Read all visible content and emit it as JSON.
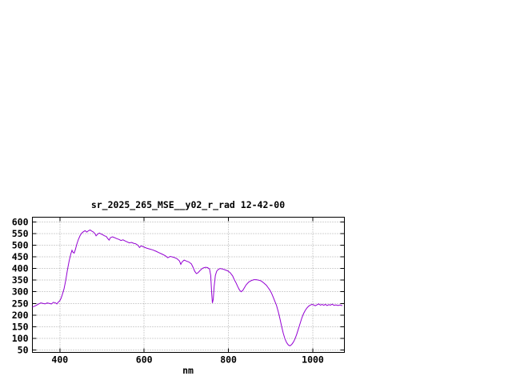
{
  "window": {
    "background": "#ffffff"
  },
  "chart_data": {
    "type": "line",
    "title": "sr_2025_265_MSE__y02_r_rad 12-42-00",
    "xlabel": "nm",
    "ylabel": "",
    "xlim": [
      335,
      1075
    ],
    "ylim": [
      40,
      620
    ],
    "x_ticks": [
      400,
      600,
      800,
      1000
    ],
    "y_ticks": [
      50,
      100,
      150,
      200,
      250,
      300,
      350,
      400,
      450,
      500,
      550,
      600
    ],
    "grid": true,
    "legend": "none",
    "colors": {
      "line": "#9400d3",
      "axis": "#000000",
      "grid": "#a8a8a8",
      "text": "#000000",
      "background": "#ffffff"
    },
    "series": [
      {
        "color": "#9400d3",
        "points": [
          [
            335,
            235
          ],
          [
            340,
            238
          ],
          [
            345,
            243
          ],
          [
            350,
            248
          ],
          [
            355,
            252
          ],
          [
            360,
            250
          ],
          [
            365,
            248
          ],
          [
            370,
            252
          ],
          [
            375,
            250
          ],
          [
            380,
            248
          ],
          [
            385,
            255
          ],
          [
            390,
            252
          ],
          [
            393,
            248
          ],
          [
            396,
            255
          ],
          [
            400,
            262
          ],
          [
            403,
            272
          ],
          [
            406,
            288
          ],
          [
            410,
            312
          ],
          [
            414,
            348
          ],
          [
            418,
            392
          ],
          [
            422,
            432
          ],
          [
            426,
            462
          ],
          [
            429,
            478
          ],
          [
            431,
            470
          ],
          [
            434,
            466
          ],
          [
            437,
            482
          ],
          [
            440,
            502
          ],
          [
            444,
            524
          ],
          [
            448,
            541
          ],
          [
            452,
            552
          ],
          [
            456,
            558
          ],
          [
            460,
            562
          ],
          [
            464,
            556
          ],
          [
            468,
            562
          ],
          [
            472,
            565
          ],
          [
            476,
            560
          ],
          [
            480,
            556
          ],
          [
            484,
            548
          ],
          [
            486,
            540
          ],
          [
            490,
            548
          ],
          [
            494,
            552
          ],
          [
            498,
            548
          ],
          [
            502,
            545
          ],
          [
            506,
            540
          ],
          [
            510,
            538
          ],
          [
            514,
            528
          ],
          [
            517,
            522
          ],
          [
            520,
            532
          ],
          [
            525,
            536
          ],
          [
            530,
            532
          ],
          [
            535,
            528
          ],
          [
            540,
            525
          ],
          [
            545,
            520
          ],
          [
            550,
            523
          ],
          [
            555,
            518
          ],
          [
            560,
            514
          ],
          [
            565,
            510
          ],
          [
            570,
            512
          ],
          [
            575,
            508
          ],
          [
            580,
            506
          ],
          [
            585,
            500
          ],
          [
            589,
            490
          ],
          [
            593,
            497
          ],
          [
            598,
            493
          ],
          [
            605,
            488
          ],
          [
            612,
            484
          ],
          [
            620,
            480
          ],
          [
            628,
            474
          ],
          [
            635,
            468
          ],
          [
            642,
            462
          ],
          [
            650,
            455
          ],
          [
            656,
            446
          ],
          [
            662,
            452
          ],
          [
            670,
            448
          ],
          [
            678,
            442
          ],
          [
            684,
            432
          ],
          [
            687,
            418
          ],
          [
            690,
            428
          ],
          [
            695,
            436
          ],
          [
            700,
            432
          ],
          [
            706,
            428
          ],
          [
            712,
            420
          ],
          [
            716,
            405
          ],
          [
            720,
            388
          ],
          [
            724,
            378
          ],
          [
            728,
            382
          ],
          [
            732,
            390
          ],
          [
            736,
            397
          ],
          [
            740,
            402
          ],
          [
            745,
            405
          ],
          [
            750,
            404
          ],
          [
            755,
            398
          ],
          [
            758,
            370
          ],
          [
            760,
            300
          ],
          [
            762,
            252
          ],
          [
            764,
            268
          ],
          [
            766,
            320
          ],
          [
            769,
            370
          ],
          [
            772,
            388
          ],
          [
            776,
            396
          ],
          [
            780,
            400
          ],
          [
            786,
            398
          ],
          [
            792,
            394
          ],
          [
            798,
            390
          ],
          [
            804,
            382
          ],
          [
            810,
            368
          ],
          [
            814,
            352
          ],
          [
            818,
            338
          ],
          [
            822,
            322
          ],
          [
            826,
            308
          ],
          [
            830,
            300
          ],
          [
            834,
            306
          ],
          [
            838,
            318
          ],
          [
            842,
            330
          ],
          [
            848,
            342
          ],
          [
            854,
            348
          ],
          [
            860,
            352
          ],
          [
            866,
            352
          ],
          [
            872,
            350
          ],
          [
            878,
            346
          ],
          [
            884,
            338
          ],
          [
            890,
            328
          ],
          [
            894,
            318
          ],
          [
            898,
            308
          ],
          [
            902,
            295
          ],
          [
            906,
            278
          ],
          [
            910,
            260
          ],
          [
            914,
            242
          ],
          [
            918,
            215
          ],
          [
            922,
            185
          ],
          [
            926,
            152
          ],
          [
            930,
            122
          ],
          [
            934,
            98
          ],
          [
            938,
            82
          ],
          [
            942,
            72
          ],
          [
            946,
            68
          ],
          [
            950,
            74
          ],
          [
            954,
            84
          ],
          [
            958,
            98
          ],
          [
            962,
            118
          ],
          [
            966,
            142
          ],
          [
            970,
            165
          ],
          [
            974,
            188
          ],
          [
            978,
            206
          ],
          [
            982,
            220
          ],
          [
            986,
            230
          ],
          [
            990,
            238
          ],
          [
            994,
            243
          ],
          [
            998,
            246
          ],
          [
            1002,
            244
          ],
          [
            1006,
            240
          ],
          [
            1010,
            244
          ],
          [
            1014,
            248
          ],
          [
            1018,
            243
          ],
          [
            1022,
            246
          ],
          [
            1026,
            242
          ],
          [
            1030,
            246
          ],
          [
            1034,
            241
          ],
          [
            1038,
            245
          ],
          [
            1042,
            243
          ],
          [
            1046,
            247
          ],
          [
            1050,
            242
          ],
          [
            1055,
            244
          ],
          [
            1060,
            241
          ],
          [
            1065,
            244
          ],
          [
            1070,
            240
          ]
        ]
      }
    ]
  }
}
